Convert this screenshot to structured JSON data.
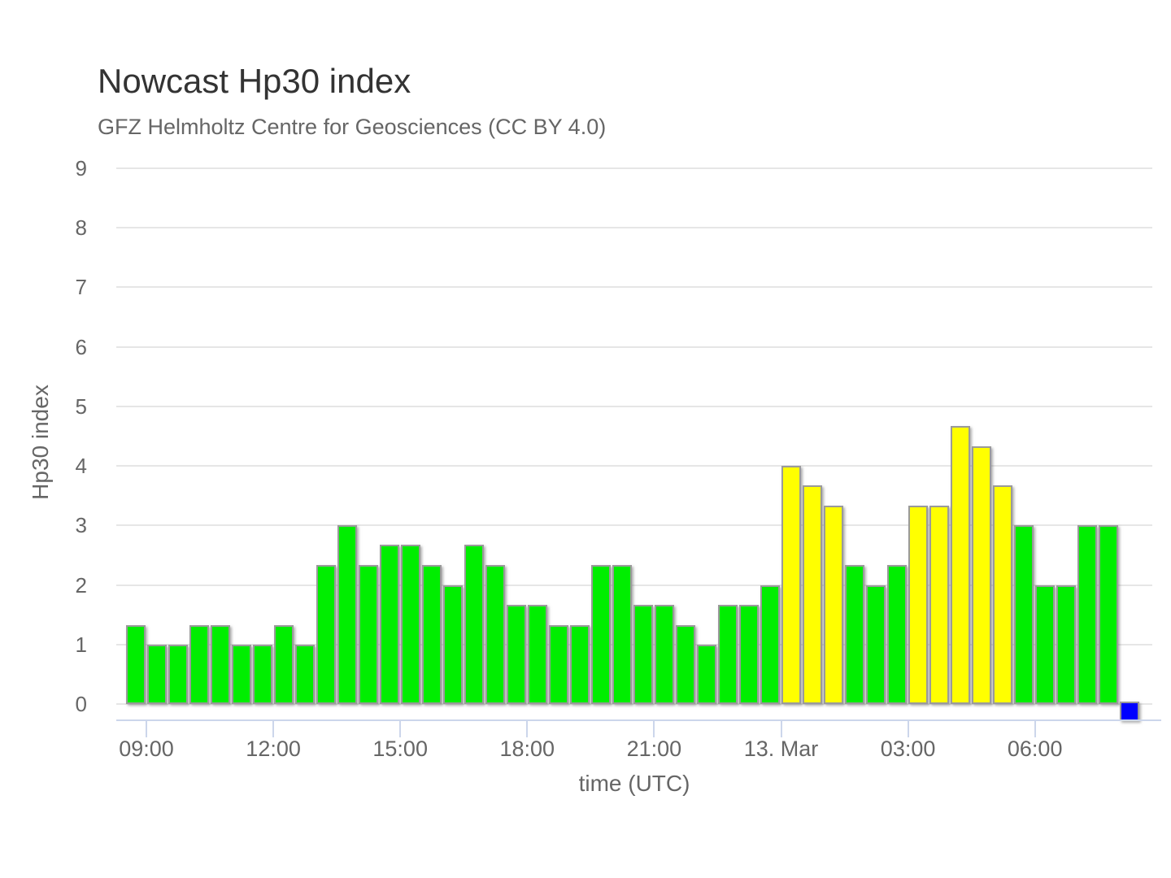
{
  "chart_data": {
    "type": "bar",
    "title": "Nowcast Hp30 index",
    "subtitle": "GFZ Helmholtz Centre for Geosciences (CC BY 4.0)",
    "xlabel": "time (UTC)",
    "ylabel": "Hp30 index",
    "ylim": [
      0,
      9
    ],
    "grid": "horizontal",
    "legend": "none",
    "y_ticks": [
      0,
      1,
      2,
      3,
      4,
      5,
      6,
      7,
      8,
      9
    ],
    "x_ticks": [
      "09:00",
      "12:00",
      "15:00",
      "18:00",
      "21:00",
      "13. Mar",
      "03:00",
      "06:00"
    ],
    "bar_interval_minutes": 30,
    "colors": {
      "green": "#00ee00",
      "yellow": "#ffff00",
      "blue": "#0000ff",
      "bar_border": "#9a9a9a"
    },
    "bars": [
      {
        "time": "08:30",
        "value": 1.33,
        "color": "green"
      },
      {
        "time": "09:00",
        "value": 1.0,
        "color": "green"
      },
      {
        "time": "09:30",
        "value": 1.0,
        "color": "green"
      },
      {
        "time": "10:00",
        "value": 1.33,
        "color": "green"
      },
      {
        "time": "10:30",
        "value": 1.33,
        "color": "green"
      },
      {
        "time": "11:00",
        "value": 1.0,
        "color": "green"
      },
      {
        "time": "11:30",
        "value": 1.0,
        "color": "green"
      },
      {
        "time": "12:00",
        "value": 1.33,
        "color": "green"
      },
      {
        "time": "12:30",
        "value": 1.0,
        "color": "green"
      },
      {
        "time": "13:00",
        "value": 2.33,
        "color": "green"
      },
      {
        "time": "13:30",
        "value": 3.0,
        "color": "green"
      },
      {
        "time": "14:00",
        "value": 2.33,
        "color": "green"
      },
      {
        "time": "14:30",
        "value": 2.67,
        "color": "green"
      },
      {
        "time": "15:00",
        "value": 2.67,
        "color": "green"
      },
      {
        "time": "15:30",
        "value": 2.33,
        "color": "green"
      },
      {
        "time": "16:00",
        "value": 2.0,
        "color": "green"
      },
      {
        "time": "16:30",
        "value": 2.67,
        "color": "green"
      },
      {
        "time": "17:00",
        "value": 2.33,
        "color": "green"
      },
      {
        "time": "17:30",
        "value": 1.67,
        "color": "green"
      },
      {
        "time": "18:00",
        "value": 1.67,
        "color": "green"
      },
      {
        "time": "18:30",
        "value": 1.33,
        "color": "green"
      },
      {
        "time": "19:00",
        "value": 1.33,
        "color": "green"
      },
      {
        "time": "19:30",
        "value": 2.33,
        "color": "green"
      },
      {
        "time": "20:00",
        "value": 2.33,
        "color": "green"
      },
      {
        "time": "20:30",
        "value": 1.67,
        "color": "green"
      },
      {
        "time": "21:00",
        "value": 1.67,
        "color": "green"
      },
      {
        "time": "21:30",
        "value": 1.33,
        "color": "green"
      },
      {
        "time": "22:00",
        "value": 1.0,
        "color": "green"
      },
      {
        "time": "22:30",
        "value": 1.67,
        "color": "green"
      },
      {
        "time": "23:00",
        "value": 1.67,
        "color": "green"
      },
      {
        "time": "23:30",
        "value": 2.0,
        "color": "green"
      },
      {
        "time": "00:00",
        "value": 4.0,
        "color": "yellow"
      },
      {
        "time": "00:30",
        "value": 3.67,
        "color": "yellow"
      },
      {
        "time": "01:00",
        "value": 3.33,
        "color": "yellow"
      },
      {
        "time": "01:30",
        "value": 2.33,
        "color": "green"
      },
      {
        "time": "02:00",
        "value": 2.0,
        "color": "green"
      },
      {
        "time": "02:30",
        "value": 2.33,
        "color": "green"
      },
      {
        "time": "03:00",
        "value": 3.33,
        "color": "yellow"
      },
      {
        "time": "03:30",
        "value": 3.33,
        "color": "yellow"
      },
      {
        "time": "04:00",
        "value": 4.67,
        "color": "yellow"
      },
      {
        "time": "04:30",
        "value": 4.33,
        "color": "yellow"
      },
      {
        "time": "05:00",
        "value": 3.67,
        "color": "yellow"
      },
      {
        "time": "05:30",
        "value": 3.0,
        "color": "green"
      },
      {
        "time": "06:00",
        "value": 2.0,
        "color": "green"
      },
      {
        "time": "06:30",
        "value": 2.0,
        "color": "green"
      },
      {
        "time": "07:00",
        "value": 3.0,
        "color": "green"
      },
      {
        "time": "07:30",
        "value": 3.0,
        "color": "green"
      }
    ],
    "current_interval_marker": {
      "time": "08:00",
      "color": "blue"
    }
  }
}
